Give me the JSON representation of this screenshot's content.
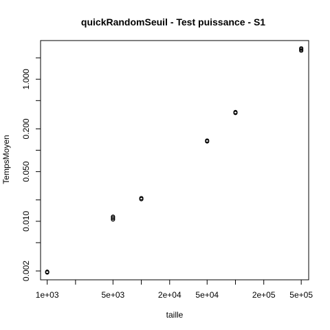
{
  "chart_data": {
    "type": "scatter",
    "title": "quickRandomSeuil - Test puissance - S1",
    "xlabel": "taille",
    "ylabel": "TempsMoyen",
    "x_scale": "log",
    "y_scale": "log",
    "xlim": [
      850,
      600000
    ],
    "ylim": [
      0.0015,
      3.5
    ],
    "x_ticks": [
      {
        "value": 1000,
        "label": "1e+03"
      },
      {
        "value": 2000,
        "label": ""
      },
      {
        "value": 5000,
        "label": "5e+03"
      },
      {
        "value": 10000,
        "label": ""
      },
      {
        "value": 20000,
        "label": "2e+04"
      },
      {
        "value": 50000,
        "label": "5e+04"
      },
      {
        "value": 100000,
        "label": ""
      },
      {
        "value": 200000,
        "label": "2e+05"
      },
      {
        "value": 500000,
        "label": "5e+05"
      }
    ],
    "y_ticks": [
      {
        "value": 0.002,
        "label": "0.002"
      },
      {
        "value": 0.005,
        "label": ""
      },
      {
        "value": 0.01,
        "label": "0.010"
      },
      {
        "value": 0.02,
        "label": ""
      },
      {
        "value": 0.05,
        "label": "0.050"
      },
      {
        "value": 0.1,
        "label": ""
      },
      {
        "value": 0.2,
        "label": "0.200"
      },
      {
        "value": 0.5,
        "label": ""
      },
      {
        "value": 1.0,
        "label": "1.000"
      },
      {
        "value": 2.0,
        "label": ""
      }
    ],
    "points": [
      {
        "x": 1000,
        "y": 0.0019
      },
      {
        "x": 1000,
        "y": 0.00195
      },
      {
        "x": 5000,
        "y": 0.0106
      },
      {
        "x": 5000,
        "y": 0.0111
      },
      {
        "x": 5000,
        "y": 0.0116
      },
      {
        "x": 10000,
        "y": 0.0205
      },
      {
        "x": 10000,
        "y": 0.0212
      },
      {
        "x": 50000,
        "y": 0.133
      },
      {
        "x": 50000,
        "y": 0.137
      },
      {
        "x": 100000,
        "y": 0.335
      },
      {
        "x": 100000,
        "y": 0.345
      },
      {
        "x": 500000,
        "y": 2.52
      },
      {
        "x": 500000,
        "y": 2.62
      },
      {
        "x": 500000,
        "y": 2.72
      }
    ],
    "marker": "open-circle",
    "grid": false,
    "legend": "none"
  }
}
